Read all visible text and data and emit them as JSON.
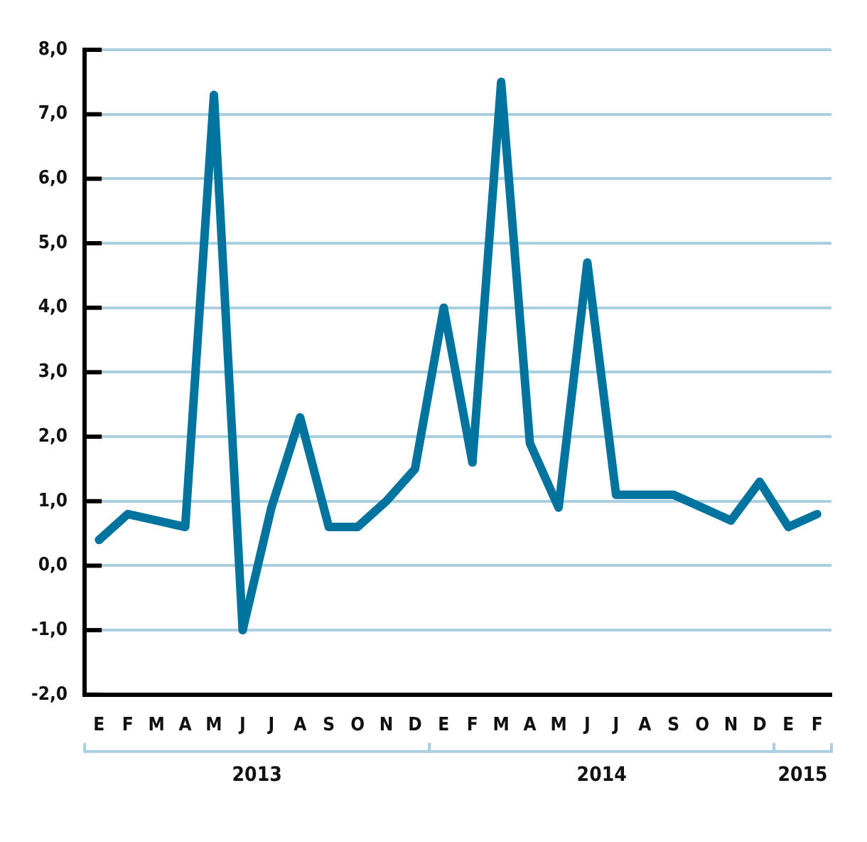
{
  "chart_data": {
    "type": "line",
    "categories": [
      "E",
      "F",
      "M",
      "A",
      "M",
      "J",
      "J",
      "A",
      "S",
      "O",
      "N",
      "D",
      "E",
      "F",
      "M",
      "A",
      "M",
      "J",
      "J",
      "A",
      "S",
      "O",
      "N",
      "D",
      "E",
      "F"
    ],
    "series": [
      {
        "color": "#00749e",
        "values": [
          0.4,
          0.8,
          0.7,
          0.6,
          7.3,
          -1.0,
          0.9,
          2.3,
          0.6,
          0.6,
          1.0,
          1.5,
          4.0,
          1.6,
          7.5,
          1.9,
          0.9,
          4.7,
          1.1,
          1.1,
          1.1,
          0.9,
          0.7,
          1.3,
          0.6,
          0.8
        ]
      }
    ],
    "ylim": [
      -2,
      8
    ],
    "yticks": [
      {
        "value": -2,
        "label": "-2,0"
      },
      {
        "value": -1,
        "label": "-1,0"
      },
      {
        "value": 0,
        "label": "0,0"
      },
      {
        "value": 1,
        "label": "1,0"
      },
      {
        "value": 2,
        "label": "2,0"
      },
      {
        "value": 3,
        "label": "3,0"
      },
      {
        "value": 4,
        "label": "4,0"
      },
      {
        "value": 5,
        "label": "5,0"
      },
      {
        "value": 6,
        "label": "6,0"
      },
      {
        "value": 7,
        "label": "7,0"
      },
      {
        "value": 8,
        "label": "8,0"
      }
    ],
    "annotations": [
      "2013",
      "2014",
      "2015"
    ],
    "grid": "y",
    "legend": false,
    "marker": "none",
    "line_style": "solid"
  }
}
